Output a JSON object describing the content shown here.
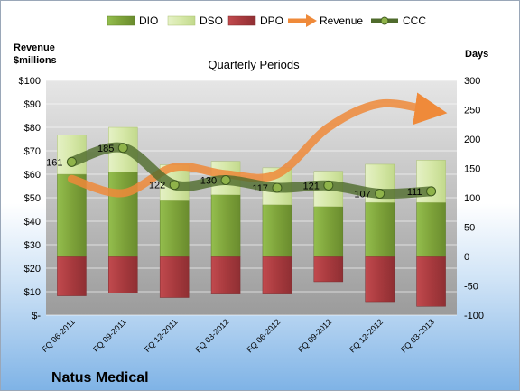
{
  "chart_data": {
    "type": "bar",
    "company": "Natus Medical",
    "subtitle": "Quarterly Periods",
    "ylabel_left": [
      "Revenue",
      "$millions"
    ],
    "ylabel_right": "Days",
    "left_axis": {
      "min": 0,
      "max": 100,
      "step": 10,
      "tick_labels": [
        "$-",
        "$10",
        "$20",
        "$30",
        "$40",
        "$50",
        "$60",
        "$70",
        "$80",
        "$90",
        "$100"
      ]
    },
    "right_axis": {
      "min": -100,
      "max": 300,
      "step": 50,
      "tick_labels": [
        "-100",
        "-50",
        "0",
        "50",
        "100",
        "150",
        "200",
        "250",
        "300"
      ]
    },
    "categories": [
      "FQ 06-2011",
      "FQ 09-2011",
      "FQ 12-2011",
      "FQ 03-2012",
      "FQ 06-2012",
      "FQ 09-2012",
      "FQ 12-2012",
      "FQ 03-2013"
    ],
    "legend": [
      "DIO",
      "DSO",
      "DPO",
      "Revenue",
      "CCC"
    ],
    "colors": {
      "DIO": "#7ea33a",
      "DSO": "#d6e8a8",
      "DPO": "#a83a3e",
      "Revenue": "#ef8a3a",
      "CCC": "#4f6b2c"
    },
    "series": [
      {
        "name": "DIO",
        "axis": "right",
        "values": [
          140,
          144,
          95,
          105,
          88,
          85,
          92,
          92
        ]
      },
      {
        "name": "DSO",
        "axis": "right",
        "values": [
          67,
          76,
          61,
          57,
          63,
          60,
          65,
          72
        ]
      },
      {
        "name": "DPO",
        "axis": "right",
        "values": [
          -67,
          -62,
          -70,
          -64,
          -64,
          -43,
          -77,
          -85
        ]
      },
      {
        "name": "Revenue",
        "axis": "left",
        "values": [
          58,
          52,
          63,
          60,
          60,
          80,
          90,
          87
        ]
      },
      {
        "name": "CCC",
        "axis": "right",
        "values": [
          161,
          185,
          122,
          130,
          117,
          121,
          107,
          111
        ]
      }
    ],
    "ccc_labels": [
      "161",
      "185",
      "122",
      "130",
      "117",
      "121",
      "107",
      "111"
    ],
    "grid": true,
    "legend_position": "top"
  }
}
